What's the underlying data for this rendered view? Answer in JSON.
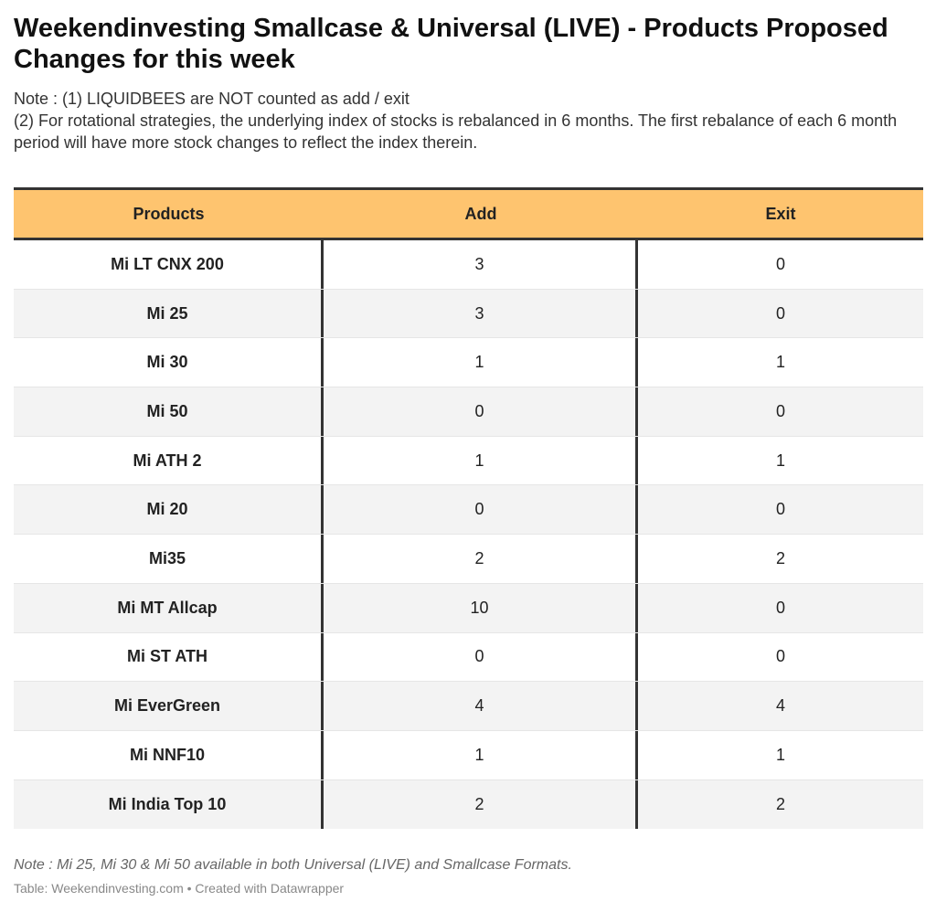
{
  "chart_data": {
    "type": "table",
    "title": "Weekendinvesting Smallcase & Universal (LIVE) - Products Proposed Changes for this week",
    "notes": [
      "Note : (1) LIQUIDBEES are NOT counted as add / exit",
      "(2) For rotational strategies, the underlying index of stocks is rebalanced in 6 months. The first rebalance of each 6 month period will have more stock changes to reflect the index therein."
    ],
    "columns": [
      "Products",
      "Add",
      "Exit"
    ],
    "rows": [
      [
        "Mi LT CNX 200",
        "3",
        "0"
      ],
      [
        "Mi 25",
        "3",
        "0"
      ],
      [
        "Mi 30",
        "1",
        "1"
      ],
      [
        "Mi 50",
        "0",
        "0"
      ],
      [
        "Mi ATH 2",
        "1",
        "1"
      ],
      [
        "Mi 20",
        "0",
        "0"
      ],
      [
        "Mi35",
        "2",
        "2"
      ],
      [
        "Mi MT Allcap",
        "10",
        "0"
      ],
      [
        "Mi ST ATH",
        "0",
        "0"
      ],
      [
        "Mi EverGreen",
        "4",
        "4"
      ],
      [
        "Mi NNF10",
        "1",
        "1"
      ],
      [
        "Mi India Top 10",
        "2",
        "2"
      ]
    ],
    "footer_note": "Note : Mi 25, Mi 30 & Mi 50 available in both Universal (LIVE) and Smallcase Formats.",
    "source": "Table: Weekendinvesting.com • Created with Datawrapper"
  },
  "colors": {
    "header_background": "#fec46f",
    "shaded_row": "#f3f3f3",
    "rule": "#333333"
  }
}
